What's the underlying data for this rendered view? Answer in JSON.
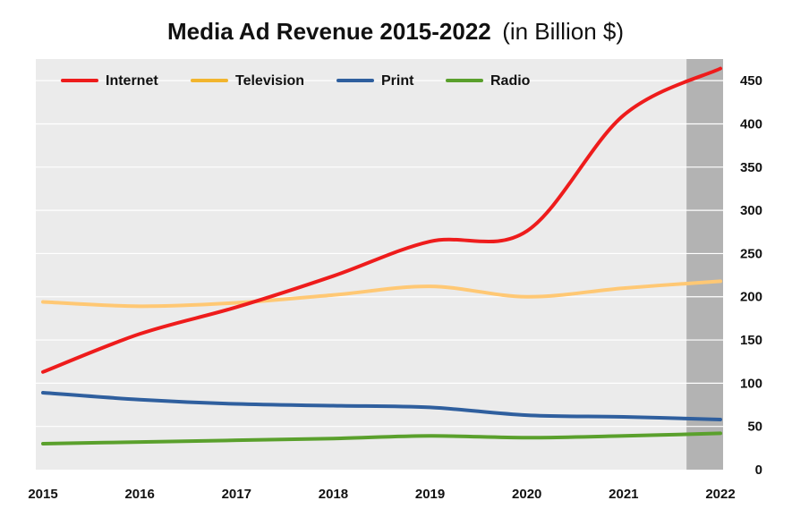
{
  "chart_data": {
    "type": "line",
    "title": "Media Ad Revenue 2015-2022",
    "title_suffix": "(in Billion $)",
    "xlabel": "",
    "ylabel": "",
    "x": [
      "2015",
      "2016",
      "2017",
      "2018",
      "2019",
      "2020",
      "2021",
      "2022"
    ],
    "y_ticks": [
      "0",
      "50",
      "100",
      "150",
      "200",
      "250",
      "300",
      "350",
      "400",
      "450"
    ],
    "ylim": [
      0,
      475
    ],
    "grid": true,
    "legend_position": "top-left",
    "highlight": {
      "from": 2021.65,
      "to": 2022,
      "color": "#b3b3b3"
    },
    "series": [
      {
        "name": "Internet",
        "color": "#ee1c1c",
        "values": [
          113,
          157,
          188,
          224,
          264,
          276,
          410,
          464
        ]
      },
      {
        "name": "Television",
        "color": "#ffc874",
        "legend_color": "#f2b52e",
        "values": [
          194,
          189,
          193,
          202,
          212,
          200,
          210,
          218
        ]
      },
      {
        "name": "Print",
        "color": "#2f5f9e",
        "values": [
          89,
          81,
          76,
          74,
          72,
          63,
          61,
          58
        ]
      },
      {
        "name": "Radio",
        "color": "#5aa02c",
        "values": [
          30,
          32,
          34,
          36,
          39,
          37,
          39,
          42
        ]
      }
    ]
  }
}
